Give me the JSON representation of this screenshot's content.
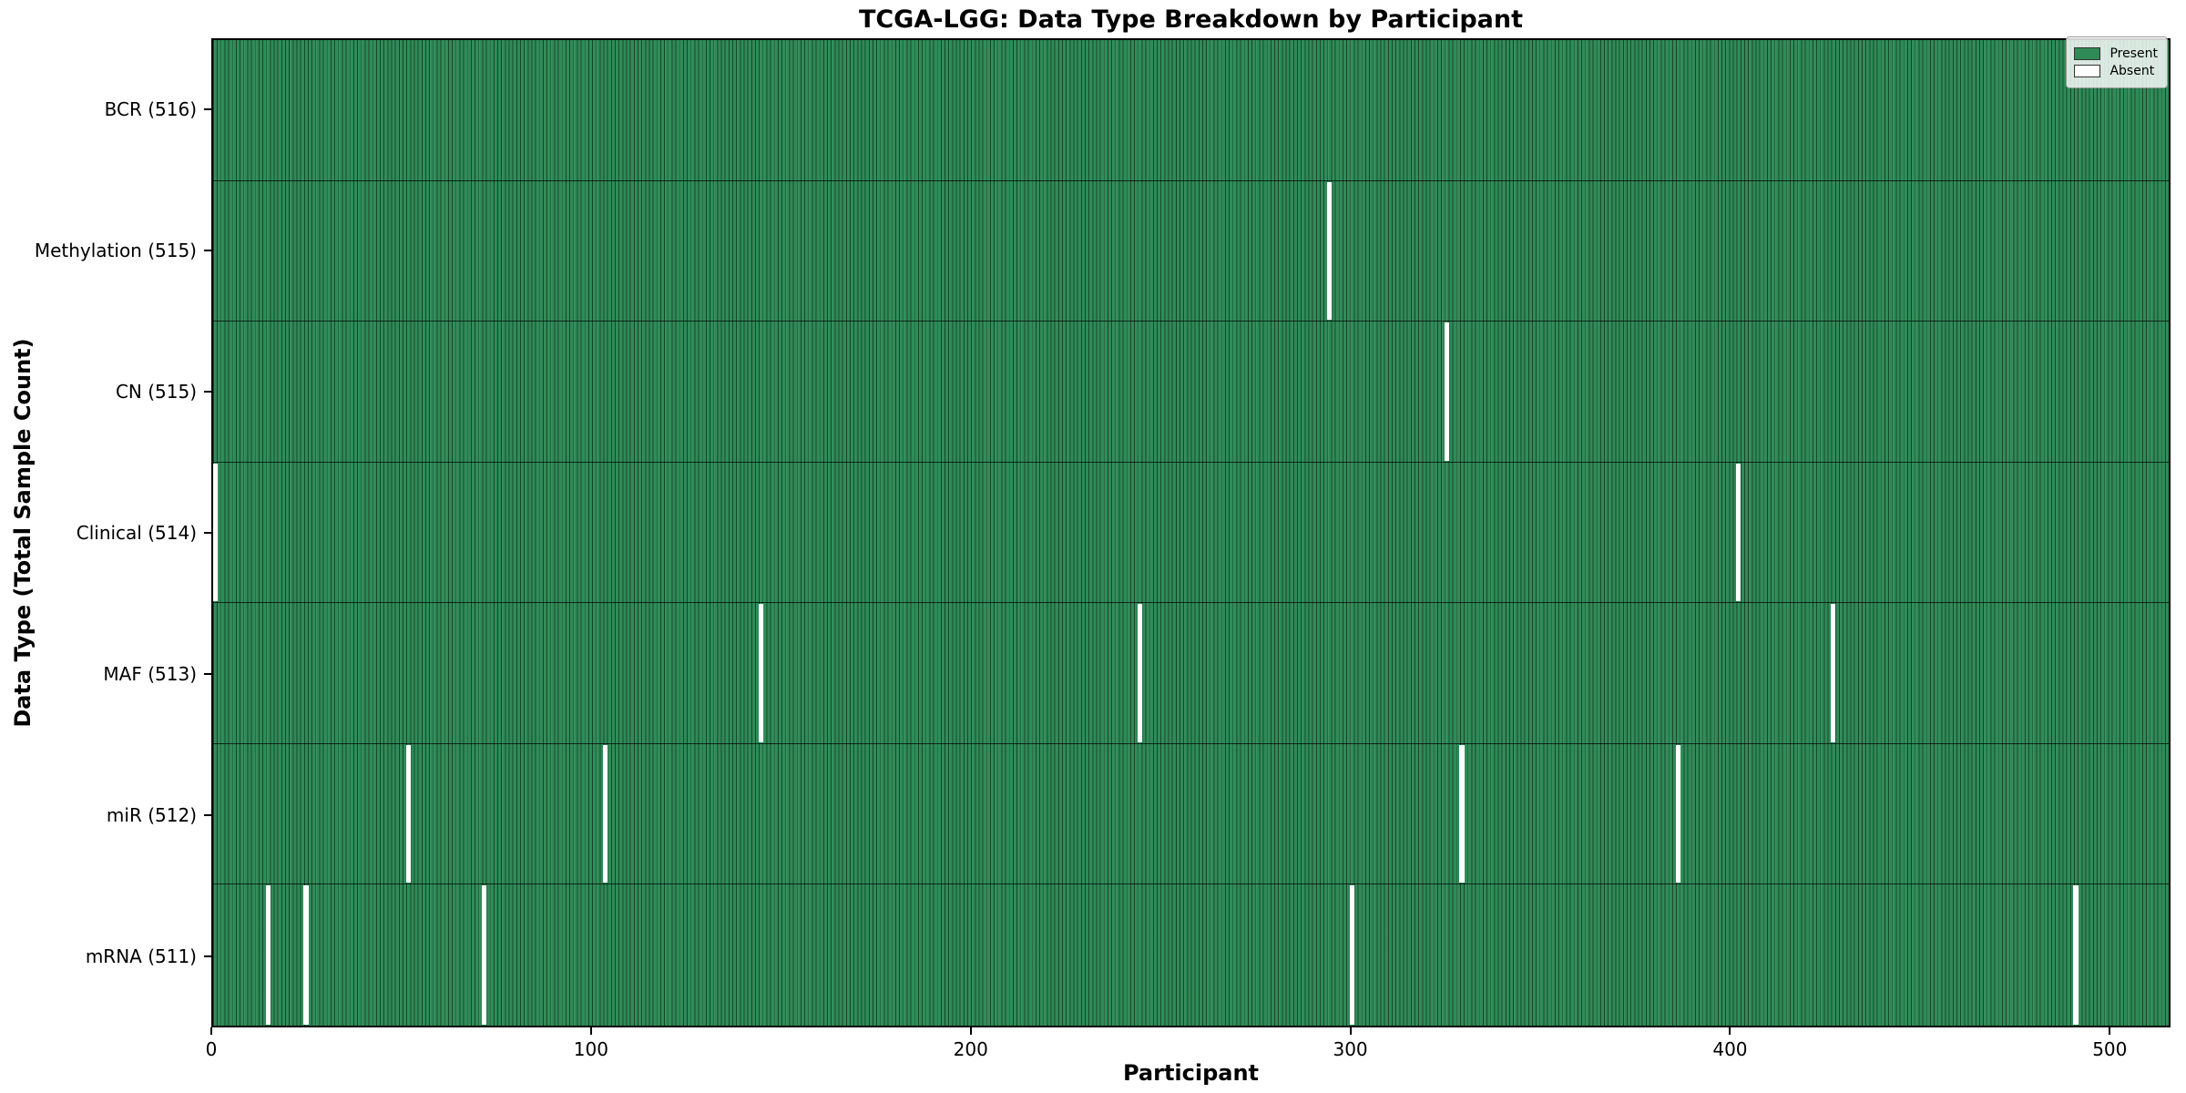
{
  "chart_data": {
    "type": "heatmap",
    "title": "TCGA-LGG: Data Type Breakdown by Participant",
    "xlabel": "Participant",
    "ylabel": "Data Type (Total Sample Count)",
    "xlim": [
      0,
      516
    ],
    "n_participants": 516,
    "x_ticks": [
      0,
      100,
      200,
      300,
      400,
      500
    ],
    "grid": false,
    "rows": [
      {
        "label": "BCR (516)",
        "data_type": "BCR",
        "total": 516,
        "absent_participants": []
      },
      {
        "label": "Methylation (515)",
        "data_type": "Methylation",
        "total": 515,
        "absent_participants": [
          294
        ]
      },
      {
        "label": "CN (515)",
        "data_type": "CN",
        "total": 515,
        "absent_participants": [
          325
        ]
      },
      {
        "label": "Clinical (514)",
        "data_type": "Clinical",
        "total": 514,
        "absent_participants": [
          0,
          402
        ]
      },
      {
        "label": "MAF (513)",
        "data_type": "MAF",
        "total": 513,
        "absent_participants": [
          144,
          244,
          427
        ]
      },
      {
        "label": "miR (512)",
        "data_type": "miR",
        "total": 512,
        "absent_participants": [
          51,
          103,
          329,
          386
        ]
      },
      {
        "label": "mRNA (511)",
        "data_type": "mRNA",
        "total": 511,
        "absent_participants": [
          14,
          24,
          71,
          300,
          491
        ]
      }
    ],
    "legend": {
      "position": "upper right",
      "entries": [
        {
          "label": "Present",
          "color": "#2e8b57"
        },
        {
          "label": "Absent",
          "color": "#ffffff"
        }
      ]
    },
    "colors": {
      "present": "#2e8b57",
      "absent": "#ffffff",
      "bar_edge": "#12301f",
      "axis": "#000000",
      "background": "#ffffff"
    }
  }
}
